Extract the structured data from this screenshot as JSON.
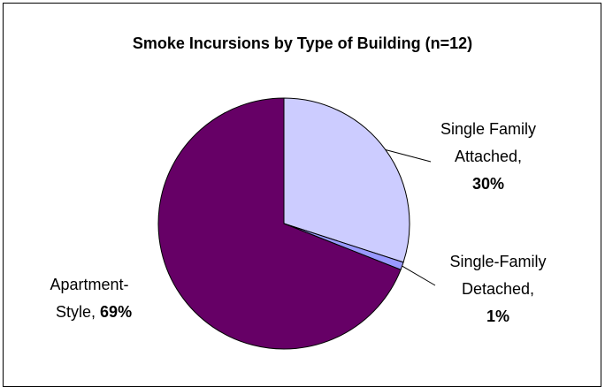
{
  "chart_data": {
    "type": "pie",
    "title": "Smoke Incursions by Type of Building (n=12)",
    "slices": [
      {
        "label_lines": [
          "Single Family",
          "Attached,"
        ],
        "value_label": "30%",
        "value": 30,
        "color": "#ccccff"
      },
      {
        "label_lines": [
          "Single-Family",
          "Detached,"
        ],
        "value_label": "1%",
        "value": 1,
        "color": "#9999ff"
      },
      {
        "label_lines": [
          "Apartment-",
          "Style,"
        ],
        "value_label": "69%",
        "value": 69,
        "color": "#660066"
      }
    ],
    "legend": "none"
  }
}
